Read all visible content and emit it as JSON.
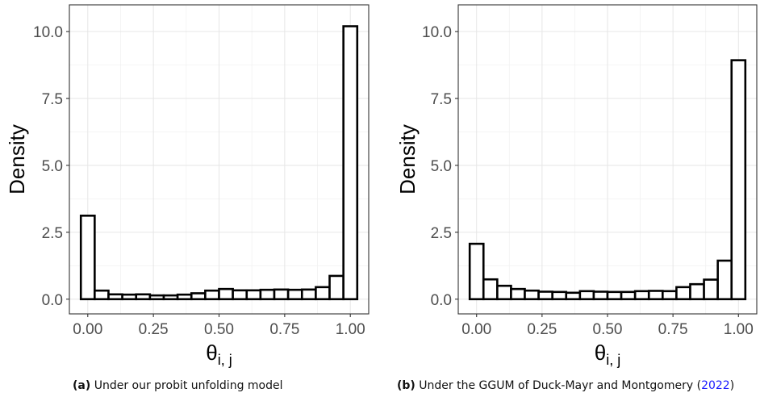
{
  "chart_data": [
    {
      "type": "bar",
      "panel_label": "(a)",
      "caption": "Under our probit unfolding model",
      "xlabel": "θ",
      "xlabel_sub": "i, j",
      "ylabel": "Density",
      "xlim": [
        -0.07,
        1.07
      ],
      "ylim": [
        -0.55,
        11.0
      ],
      "x_ticks": [
        0,
        0.25,
        0.5,
        0.75,
        1.0
      ],
      "x_tick_labels": [
        "0.00",
        "0.25",
        "0.50",
        "0.75",
        "1.00"
      ],
      "y_ticks": [
        0,
        2.5,
        5,
        7.5,
        10
      ],
      "y_tick_labels": [
        "0.0",
        "2.5",
        "5.0",
        "7.5",
        "10.0"
      ],
      "grid": true,
      "bin_width": 0.05263,
      "bin_centers": [
        0.0,
        0.0526,
        0.1053,
        0.1579,
        0.2105,
        0.2632,
        0.3158,
        0.3684,
        0.4211,
        0.4737,
        0.5263,
        0.5789,
        0.6316,
        0.6842,
        0.7368,
        0.7895,
        0.8421,
        0.8947,
        0.9474,
        1.0
      ],
      "values": [
        3.12,
        0.32,
        0.18,
        0.17,
        0.18,
        0.14,
        0.14,
        0.17,
        0.22,
        0.32,
        0.38,
        0.33,
        0.33,
        0.35,
        0.36,
        0.35,
        0.36,
        0.45,
        0.87,
        10.2
      ]
    },
    {
      "type": "bar",
      "panel_label": "(b)",
      "caption": "Under the GGUM of Duck-Mayr and Montgomery (",
      "cite_year": "2022",
      "caption_end": ")",
      "xlabel": "θ",
      "xlabel_sub": "i, j",
      "ylabel": "Density",
      "xlim": [
        -0.07,
        1.07
      ],
      "ylim": [
        -0.55,
        11.0
      ],
      "x_ticks": [
        0,
        0.25,
        0.5,
        0.75,
        1.0
      ],
      "x_tick_labels": [
        "0.00",
        "0.25",
        "0.50",
        "0.75",
        "1.00"
      ],
      "y_ticks": [
        0,
        2.5,
        5,
        7.5,
        10
      ],
      "y_tick_labels": [
        "0.0",
        "2.5",
        "5.0",
        "7.5",
        "10.0"
      ],
      "grid": true,
      "bin_width": 0.05263,
      "bin_centers": [
        0.0,
        0.0526,
        0.1053,
        0.1579,
        0.2105,
        0.2632,
        0.3158,
        0.3684,
        0.4211,
        0.4737,
        0.5263,
        0.5789,
        0.6316,
        0.6842,
        0.7368,
        0.7895,
        0.8421,
        0.8947,
        0.9474,
        1.0
      ],
      "values": [
        2.07,
        0.74,
        0.5,
        0.38,
        0.32,
        0.28,
        0.27,
        0.24,
        0.3,
        0.28,
        0.27,
        0.27,
        0.3,
        0.31,
        0.3,
        0.45,
        0.56,
        0.73,
        1.44,
        8.93
      ]
    }
  ]
}
